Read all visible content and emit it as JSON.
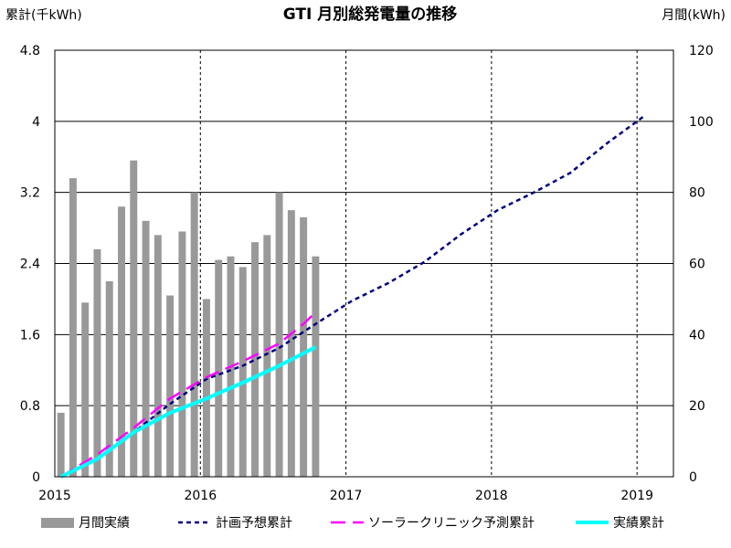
{
  "chart_data": {
    "type": "bar",
    "title": "GTI 月別総発電量の推移",
    "left_axis_label": "累計(千kWh)",
    "right_axis_label": "月間(kWh)",
    "x_axis": {
      "range": [
        "2015-01",
        "2019-01"
      ],
      "tick_labels": [
        "2015",
        "2016",
        "2017",
        "2018",
        "2019"
      ],
      "tick_positions": [
        "2015-01",
        "2016-01",
        "2017-01",
        "2018-01",
        "2019-01"
      ]
    },
    "y_left": {
      "min": 0,
      "max": 4.8,
      "tick_labels": [
        "0",
        "0.8",
        "1.6",
        "2.4",
        "3.2",
        "4",
        "4.8"
      ],
      "tick_values": [
        0,
        0.8,
        1.6,
        2.4,
        3.2,
        4.0,
        4.8
      ]
    },
    "y_right": {
      "min": 0,
      "max": 120,
      "tick_labels": [
        "0",
        "20",
        "40",
        "60",
        "80",
        "100",
        "120"
      ],
      "tick_values": [
        0,
        20,
        40,
        60,
        80,
        100,
        120
      ]
    },
    "grid": {
      "horizontal": true,
      "vertical": "dashed at year ticks"
    },
    "legend_position": "bottom",
    "series": [
      {
        "name": "月間実績",
        "kind": "bar",
        "axis": "right",
        "color": "#999999",
        "x": [
          "2015-01",
          "2015-02",
          "2015-03",
          "2015-04",
          "2015-05",
          "2015-06",
          "2015-07",
          "2015-08",
          "2015-09",
          "2015-10",
          "2015-11",
          "2015-12",
          "2016-01",
          "2016-02",
          "2016-03",
          "2016-04",
          "2016-05",
          "2016-06",
          "2016-07",
          "2016-08",
          "2016-09",
          "2016-10"
        ],
        "values": [
          18,
          84,
          49,
          64,
          55,
          76,
          89,
          72,
          68,
          51,
          69,
          80,
          50,
          61,
          62,
          59,
          66,
          68,
          80,
          75,
          73,
          62
        ]
      },
      {
        "name": "計画予想累計",
        "kind": "line",
        "axis": "left",
        "color": "#00007f",
        "dash": "dotted",
        "x": [
          "2015-01",
          "2015-04",
          "2015-07",
          "2015-10",
          "2016-01",
          "2016-04",
          "2016-07",
          "2016-10",
          "2017-01",
          "2017-04",
          "2017-07",
          "2017-10",
          "2018-01",
          "2018-04",
          "2018-07",
          "2018-10",
          "2019-01"
        ],
        "values": [
          0,
          0.2,
          0.5,
          0.82,
          1.1,
          1.25,
          1.45,
          1.72,
          1.98,
          2.18,
          2.42,
          2.73,
          3.0,
          3.2,
          3.42,
          3.75,
          4.05
        ]
      },
      {
        "name": "ソーラークリニック予測累計",
        "kind": "line",
        "axis": "left",
        "color": "#ff00ff",
        "dash": "long-dash",
        "x": [
          "2015-01",
          "2015-04",
          "2015-07",
          "2015-10",
          "2016-01",
          "2016-04",
          "2016-07",
          "2016-09",
          "2016-10"
        ],
        "values": [
          0,
          0.25,
          0.55,
          0.88,
          1.12,
          1.3,
          1.5,
          1.72,
          1.85
        ]
      },
      {
        "name": "実績累計",
        "kind": "line",
        "axis": "left",
        "color": "#00ffff",
        "dash": "solid",
        "x": [
          "2015-01",
          "2015-04",
          "2015-07",
          "2015-10",
          "2016-01",
          "2016-04",
          "2016-07",
          "2016-10"
        ],
        "values": [
          0,
          0.2,
          0.5,
          0.72,
          0.88,
          1.06,
          1.25,
          1.46
        ]
      }
    ]
  }
}
